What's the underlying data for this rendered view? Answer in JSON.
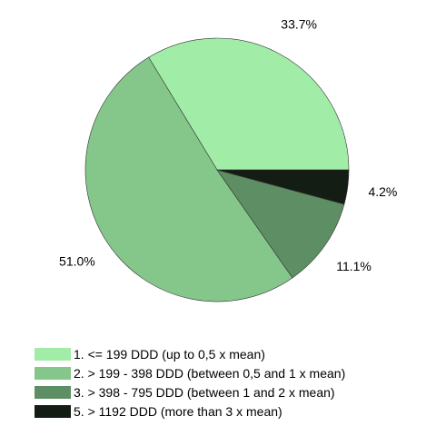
{
  "chart_data": {
    "type": "pie",
    "start_angle_deg": 0,
    "direction": "counterclockwise",
    "slices": [
      {
        "label": "1. <= 199 DDD (up to 0,5 x mean)",
        "value": 33.7,
        "value_label": "33.7%",
        "color": "#a1eda8"
      },
      {
        "label": "2. > 199 - 398 DDD (between 0,5 and 1 x mean)",
        "value": 51.0,
        "value_label": "51.0%",
        "color": "#85c68b"
      },
      {
        "label": "3. > 398 - 795 DDD (between 1 and 2 x mean)",
        "value": 11.1,
        "value_label": "11.1%",
        "color": "#5e8e63"
      },
      {
        "label": "5. > 1192 DDD (more than 3 x mean)",
        "value": 4.2,
        "value_label": "4.2%",
        "color": "#141d14"
      }
    ]
  }
}
